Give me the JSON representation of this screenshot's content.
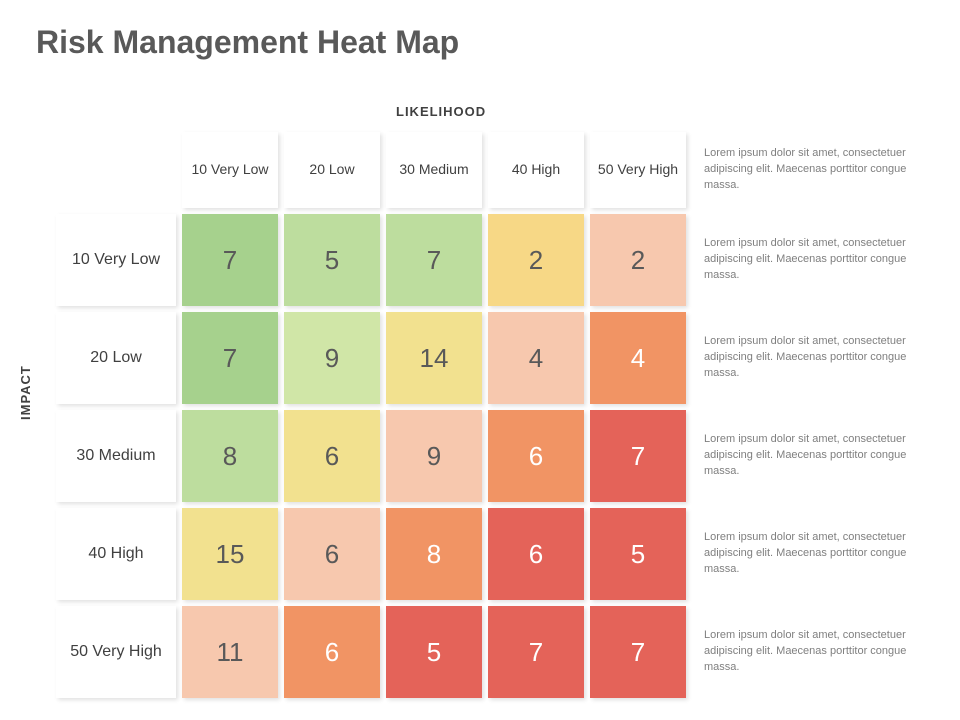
{
  "title": "Risk Management Heat Map",
  "axes": {
    "x_label": "LIKELIHOOD",
    "y_label": "IMPACT"
  },
  "heatmap": {
    "type": "heatmap",
    "background_color": "#ffffff",
    "title_fontsize": 32,
    "title_color": "#595959",
    "axis_label_fontsize": 13,
    "axis_label_color": "#404040",
    "header_fontsize": 14,
    "row_header_fontsize": 16,
    "header_text_color": "#404040",
    "header_background": "#ffffff",
    "cell_fontsize": 26,
    "note_fontsize": 11,
    "note_text_color": "#7f7f7f",
    "shadow_color": "rgba(0,0,0,0.12)",
    "grid_gap": 6,
    "col_headers": [
      "10 Very Low",
      "20 Low",
      "30 Medium",
      "40 High",
      "50 Very High"
    ],
    "row_headers": [
      "10 Very Low",
      "20 Low",
      "30 Medium",
      "40 High",
      "50 Very High"
    ],
    "values": [
      [
        7,
        5,
        7,
        2,
        2
      ],
      [
        7,
        9,
        14,
        4,
        4
      ],
      [
        8,
        6,
        9,
        6,
        7
      ],
      [
        15,
        6,
        8,
        6,
        5
      ],
      [
        11,
        6,
        5,
        7,
        7
      ]
    ],
    "cell_colors": [
      [
        "#a6d18d",
        "#bddd9e",
        "#bddd9e",
        "#f7d886",
        "#f7c8ae"
      ],
      [
        "#a6d18d",
        "#d0e6a7",
        "#f2e18f",
        "#f7c8ae",
        "#f19464"
      ],
      [
        "#bddd9e",
        "#f2e18f",
        "#f7c8ae",
        "#f19464",
        "#e46359"
      ],
      [
        "#f2e18f",
        "#f7c8ae",
        "#f19464",
        "#e46359",
        "#e46359"
      ],
      [
        "#f7c8ae",
        "#f19464",
        "#e46359",
        "#e46359",
        "#e46359"
      ]
    ],
    "value_text_colors": [
      [
        "#595959",
        "#595959",
        "#595959",
        "#595959",
        "#595959"
      ],
      [
        "#595959",
        "#595959",
        "#595959",
        "#595959",
        "#ffffff"
      ],
      [
        "#595959",
        "#595959",
        "#595959",
        "#ffffff",
        "#ffffff"
      ],
      [
        "#595959",
        "#595959",
        "#ffffff",
        "#ffffff",
        "#ffffff"
      ],
      [
        "#595959",
        "#ffffff",
        "#ffffff",
        "#ffffff",
        "#ffffff"
      ]
    ],
    "notes": [
      "Lorem ipsum dolor sit amet, consectetuer adipiscing elit. Maecenas porttitor congue massa.",
      "Lorem ipsum dolor sit amet, consectetuer adipiscing elit. Maecenas porttitor congue massa.",
      "Lorem ipsum dolor sit amet, consectetuer adipiscing elit. Maecenas porttitor congue massa.",
      "Lorem ipsum dolor sit amet, consectetuer adipiscing elit. Maecenas porttitor congue massa.",
      "Lorem ipsum dolor sit amet, consectetuer adipiscing elit. Maecenas porttitor congue massa.",
      "Lorem ipsum dolor sit amet, consectetuer adipiscing elit. Maecenas porttitor congue massa."
    ]
  }
}
